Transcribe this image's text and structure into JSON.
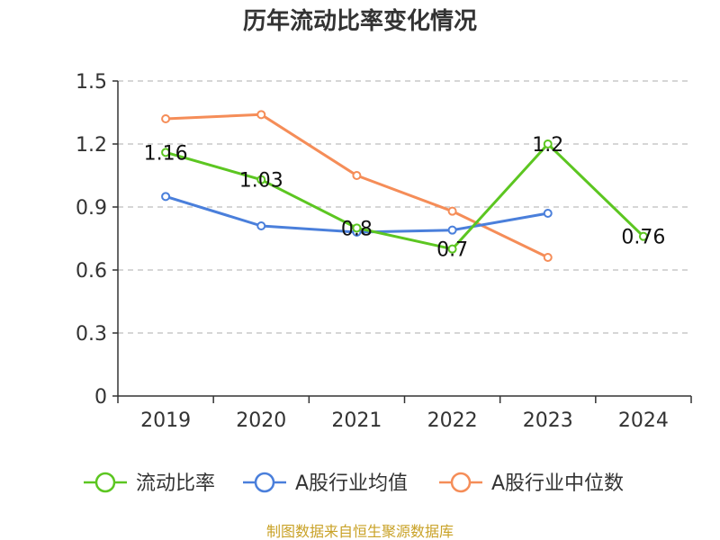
{
  "chart_data": {
    "type": "line",
    "title": "历年流动比率变化情况",
    "categories": [
      "2019",
      "2020",
      "2021",
      "2022",
      "2023",
      "2024"
    ],
    "ylim": [
      0,
      1.5
    ],
    "yticks": [
      "0",
      "0.3",
      "0.6",
      "0.9",
      "1.2",
      "1.5"
    ],
    "grid": true,
    "legend_position": "bottom",
    "series": [
      {
        "name": "流动比率",
        "color": "#5cc621",
        "values": [
          1.16,
          1.03,
          0.8,
          0.7,
          1.2,
          0.76
        ],
        "labels": [
          "1.16",
          "1.03",
          "0.8",
          "0.7",
          "1.2",
          "0.76"
        ]
      },
      {
        "name": "A股行业均值",
        "color": "#4a7fdb",
        "values": [
          0.95,
          0.81,
          0.78,
          0.79,
          0.87,
          null
        ]
      },
      {
        "name": "A股行业中位数",
        "color": "#f58d58",
        "values": [
          1.32,
          1.34,
          1.05,
          0.88,
          0.66,
          null
        ]
      }
    ]
  },
  "source_text": "制图数据来自恒生聚源数据库"
}
